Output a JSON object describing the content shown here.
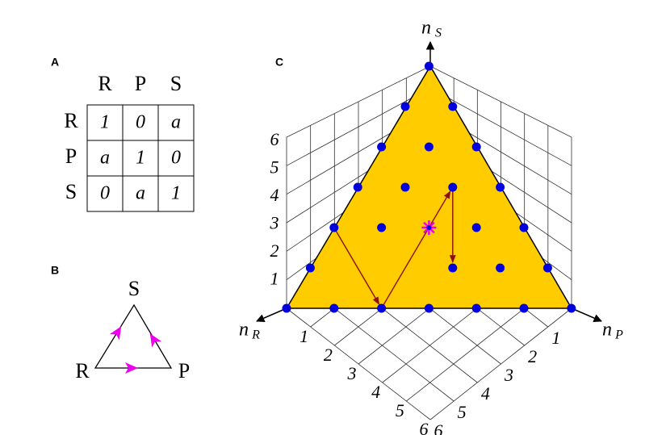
{
  "panels": {
    "a": "A",
    "b": "B",
    "c": "C"
  },
  "matrix": {
    "columns": [
      "R",
      "P",
      "S"
    ],
    "rows": [
      {
        "label": "R",
        "cells": [
          "1",
          "0",
          "a"
        ]
      },
      {
        "label": "P",
        "cells": [
          "a",
          "1",
          "0"
        ]
      },
      {
        "label": "S",
        "cells": [
          "0",
          "a",
          "1"
        ]
      }
    ]
  },
  "cycle": {
    "top": "S",
    "left": "R",
    "right": "P"
  },
  "simplex": {
    "axes": {
      "s": {
        "symbol": "n",
        "subscript": "S"
      },
      "r": {
        "symbol": "n",
        "subscript": "R"
      },
      "p": {
        "symbol": "n",
        "subscript": "P"
      }
    },
    "ticks": {
      "s": [
        1,
        2,
        3,
        4,
        5,
        6
      ],
      "r": [
        1,
        2,
        3,
        4,
        5,
        6
      ],
      "p": [
        1,
        2,
        3,
        4,
        5,
        6
      ]
    }
  }
}
